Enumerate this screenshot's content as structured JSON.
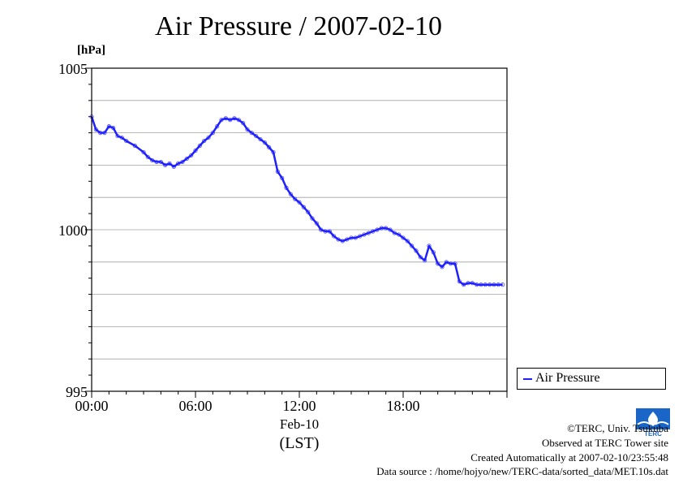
{
  "chart_data": {
    "type": "line",
    "title": "Air Pressure / 2007-02-10",
    "ylabel": "[hPa]",
    "xlabel": "Feb-10",
    "xlabel_note": "(LST)",
    "ylim": [
      995,
      1005
    ],
    "xlim": [
      0,
      24
    ],
    "y_ticks": [
      "995",
      "1000",
      "1005"
    ],
    "x_ticks": [
      {
        "label": "00:00",
        "value": 0
      },
      {
        "label": "06:00",
        "value": 6
      },
      {
        "label": "12:00",
        "value": 12
      },
      {
        "label": "18:00",
        "value": 18
      }
    ],
    "grid": true,
    "legend_position": "right-bottom",
    "series": [
      {
        "name": "Air Pressure",
        "color": "#2020ff",
        "x": [
          0.0,
          0.25,
          0.5,
          0.75,
          1.0,
          1.25,
          1.5,
          1.75,
          2.0,
          2.5,
          3.0,
          3.25,
          3.5,
          3.75,
          4.0,
          4.25,
          4.5,
          4.75,
          5.0,
          5.25,
          5.5,
          5.75,
          6.0,
          6.25,
          6.5,
          6.75,
          7.0,
          7.25,
          7.5,
          7.75,
          8.0,
          8.25,
          8.5,
          8.75,
          9.0,
          9.25,
          9.5,
          9.75,
          10.0,
          10.25,
          10.5,
          10.75,
          11.0,
          11.25,
          11.5,
          11.75,
          12.0,
          12.25,
          12.5,
          12.75,
          13.0,
          13.25,
          13.5,
          13.75,
          14.0,
          14.25,
          14.5,
          14.75,
          15.0,
          15.25,
          15.5,
          15.75,
          16.0,
          16.25,
          16.5,
          16.75,
          17.0,
          17.25,
          17.5,
          17.75,
          18.0,
          18.25,
          18.5,
          18.75,
          19.0,
          19.25,
          19.5,
          19.75,
          20.0,
          20.25,
          20.5,
          20.75,
          21.0,
          21.25,
          21.5,
          21.75,
          22.0,
          22.25,
          22.5,
          22.75,
          23.0,
          23.25,
          23.5,
          23.75
        ],
        "values": [
          1003.5,
          1003.1,
          1003.0,
          1003.0,
          1003.2,
          1003.15,
          1002.9,
          1002.85,
          1002.75,
          1002.6,
          1002.4,
          1002.25,
          1002.15,
          1002.1,
          1002.1,
          1002.0,
          1002.05,
          1001.95,
          1002.05,
          1002.1,
          1002.2,
          1002.3,
          1002.45,
          1002.6,
          1002.75,
          1002.85,
          1003.0,
          1003.2,
          1003.4,
          1003.45,
          1003.4,
          1003.45,
          1003.4,
          1003.3,
          1003.1,
          1003.0,
          1002.9,
          1002.8,
          1002.7,
          1002.55,
          1002.4,
          1001.8,
          1001.6,
          1001.3,
          1001.1,
          1000.95,
          1000.85,
          1000.7,
          1000.55,
          1000.35,
          1000.2,
          1000.0,
          999.95,
          999.95,
          999.8,
          999.7,
          999.65,
          999.7,
          999.75,
          999.75,
          999.8,
          999.85,
          999.9,
          999.95,
          1000.0,
          1000.05,
          1000.05,
          1000.0,
          999.9,
          999.85,
          999.75,
          999.65,
          999.5,
          999.35,
          999.15,
          999.05,
          999.5,
          999.3,
          998.95,
          998.85,
          999.0,
          998.95,
          998.95,
          998.4,
          998.3,
          998.35,
          998.35,
          998.3,
          998.3,
          998.3,
          998.3,
          998.3,
          998.3,
          998.3
        ]
      }
    ]
  },
  "legend": {
    "label": "Air Pressure"
  },
  "footer": {
    "copyright": "©TERC, Univ. Tsukuba",
    "observed": "Observed at TERC Tower site",
    "created": "Created Automatically at 2007-02-10/23:55:48",
    "source": "Data source : /home/hojyo/new/TERC-data/sorted_data/MET.10s.dat"
  },
  "logo": {
    "text": "TERC",
    "color": "#1a66c8"
  }
}
